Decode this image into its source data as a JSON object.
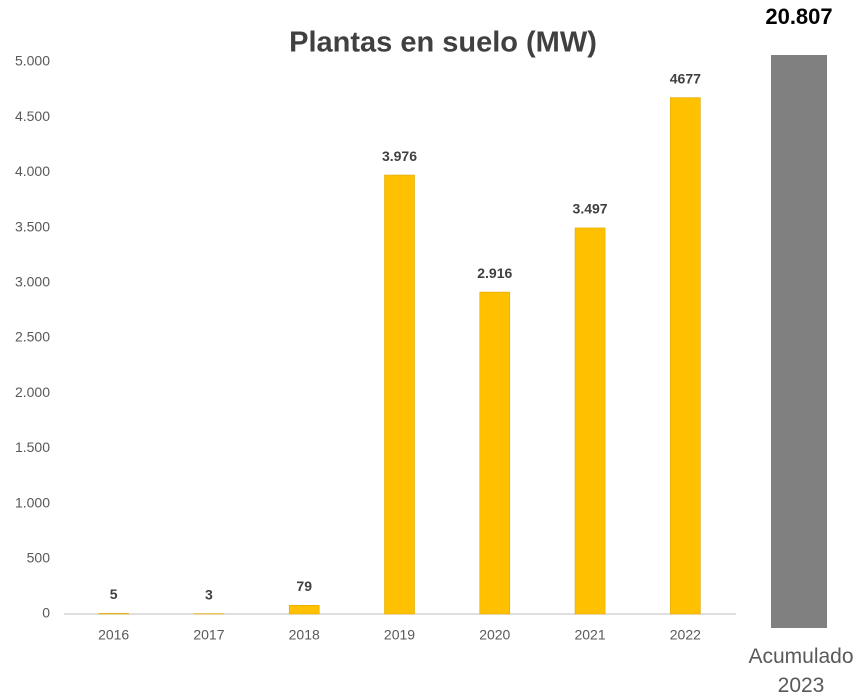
{
  "chart_data": [
    {
      "type": "bar",
      "title": "Plantas en suelo (MW)",
      "categories": [
        "2016",
        "2017",
        "2018",
        "2019",
        "2020",
        "2021",
        "2022"
      ],
      "values": [
        5,
        3,
        79,
        3976,
        2916,
        3497,
        4677
      ],
      "value_labels": [
        "5",
        "3",
        "79",
        "3.976",
        "2.916",
        "3.497",
        "4677"
      ],
      "color": "#ffc000",
      "ylim": [
        0,
        5000
      ],
      "yticks": [
        0,
        500,
        {
          "value": 1000,
          "label": "1.000"
        },
        {
          "value": 1500,
          "label": "1.500"
        },
        {
          "value": 2000,
          "label": "2.000"
        },
        {
          "value": 2500,
          "label": "2.500"
        },
        {
          "value": 3000,
          "label": "3.000"
        },
        {
          "value": 3500,
          "label": "3.500"
        },
        {
          "value": 4000,
          "label": "4.000"
        },
        {
          "value": 4500,
          "label": "4.500"
        },
        {
          "value": 5000,
          "label": "5.000"
        }
      ]
    },
    {
      "type": "bar",
      "categories": [
        "Acumulado 2023"
      ],
      "values": [
        20807
      ],
      "value_labels": [
        "20.807"
      ],
      "color": "#808080"
    }
  ]
}
